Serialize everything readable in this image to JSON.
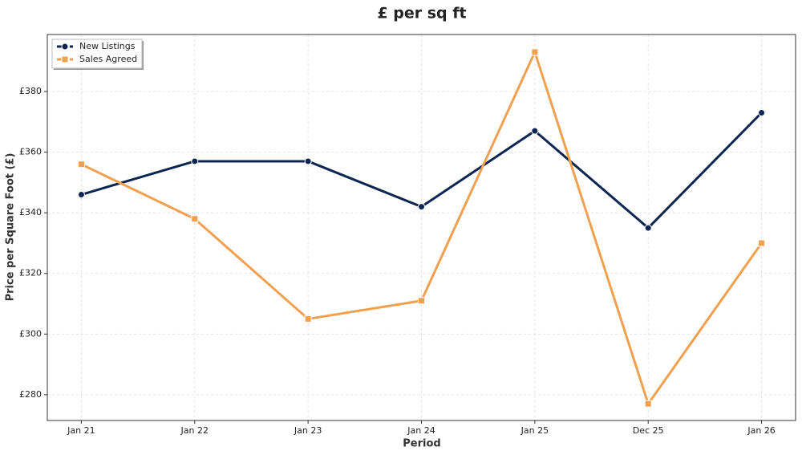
{
  "chart_data": {
    "type": "line",
    "title": "£ per sq ft",
    "x_label": "Period",
    "y_label": "Price per Square Foot (£)",
    "categories": [
      "Jan 21",
      "Jan 22",
      "Jan 23",
      "Jan 24",
      "Jan 25",
      "Dec 25",
      "Jan 26"
    ],
    "series": [
      {
        "name": "New Listings",
        "color": "#0d2551",
        "marker": "circle",
        "values": [
          346,
          357,
          357,
          342,
          367,
          335,
          373
        ]
      },
      {
        "name": "Sales Agreed",
        "color": "#f0a050",
        "marker": "square",
        "values": [
          356,
          338,
          305,
          311,
          393,
          277,
          330
        ]
      }
    ],
    "ylim": [
      271.5,
      398.8
    ],
    "yticks": [
      {
        "value": 280,
        "label": "£280"
      },
      {
        "value": 300,
        "label": "£300"
      },
      {
        "value": 320,
        "label": "£320"
      },
      {
        "value": 340,
        "label": "£340"
      },
      {
        "value": 360,
        "label": "£360"
      },
      {
        "value": 380,
        "label": "£380"
      }
    ],
    "grid": true,
    "legend": "upper-left"
  }
}
